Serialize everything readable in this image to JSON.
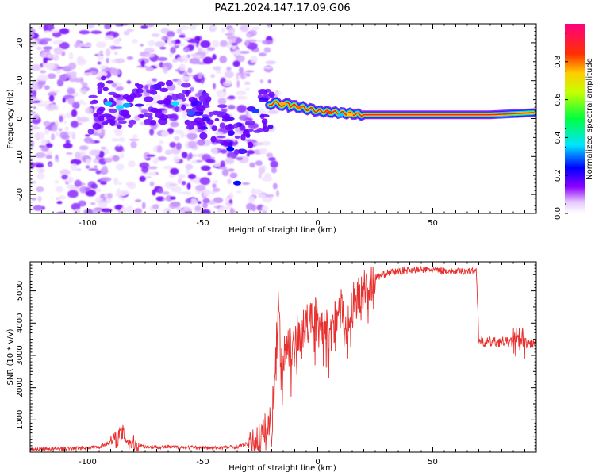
{
  "figure_title": "PAZ1.2024.147.17.09.G06",
  "chart_data": [
    {
      "type": "heatmap",
      "title": "PAZ1.2024.147.17.09.G06",
      "xlabel": "Height of straight line (km)",
      "ylabel": "Frequency (Hz)",
      "xlim": [
        -125,
        95
      ],
      "ylim": [
        -25,
        25
      ],
      "xticks": [
        -100,
        -50,
        0,
        50
      ],
      "yticks": [
        -20,
        -10,
        0,
        10,
        20
      ],
      "colorbar": {
        "label": "Normalized spectral amplitude",
        "range": [
          0,
          1
        ],
        "ticks": [
          "0.0",
          "0.2",
          "0.4",
          "0.6",
          "0.8"
        ],
        "colormap": "gist_rainbow_r-like (white/violet to magenta-red)"
      },
      "ridge": {
        "note": "dominant frequency ridge traced by highest amplitude",
        "x": [
          -95,
          -88,
          -82,
          -70,
          -60,
          -52,
          -45,
          -38,
          -32,
          -25,
          -20,
          -15,
          -10,
          -5,
          0,
          5,
          10,
          15,
          20,
          40,
          60,
          70,
          80,
          90,
          95
        ],
        "y": [
          5,
          4,
          3,
          5,
          4,
          2,
          0,
          -3,
          -5,
          2,
          3,
          4,
          3,
          2,
          2,
          1,
          1,
          1,
          1,
          1,
          1,
          1,
          1.5,
          1.5,
          1.5
        ]
      }
    },
    {
      "type": "line",
      "xlabel": "Height of straight line (km)",
      "ylabel": "SNR (10 * v/v)",
      "xlim": [
        -125,
        95
      ],
      "ylim": [
        0,
        5900
      ],
      "xticks": [
        -100,
        -50,
        0,
        50
      ],
      "yticks": [
        1000,
        2000,
        3000,
        4000,
        5000
      ],
      "color": "#e8302e",
      "x": [
        -125,
        -110,
        -95,
        -88,
        -85,
        -82,
        -75,
        -60,
        -45,
        -35,
        -28,
        -24,
        -20,
        -18,
        -17,
        -16,
        -15,
        -12,
        -10,
        -8,
        -5,
        -3,
        0,
        3,
        6,
        8,
        10,
        12,
        15,
        18,
        20,
        25,
        30,
        40,
        50,
        60,
        69,
        70,
        72,
        80,
        90,
        95
      ],
      "y": [
        90,
        110,
        160,
        380,
        600,
        300,
        170,
        150,
        130,
        170,
        300,
        500,
        900,
        3000,
        5000,
        2500,
        3000,
        3200,
        3500,
        3700,
        3900,
        4100,
        4200,
        3900,
        3600,
        4300,
        4700,
        3800,
        4600,
        4900,
        5100,
        5400,
        5550,
        5650,
        5650,
        5600,
        5620,
        3500,
        3400,
        3420,
        3380,
        3350
      ]
    }
  ]
}
